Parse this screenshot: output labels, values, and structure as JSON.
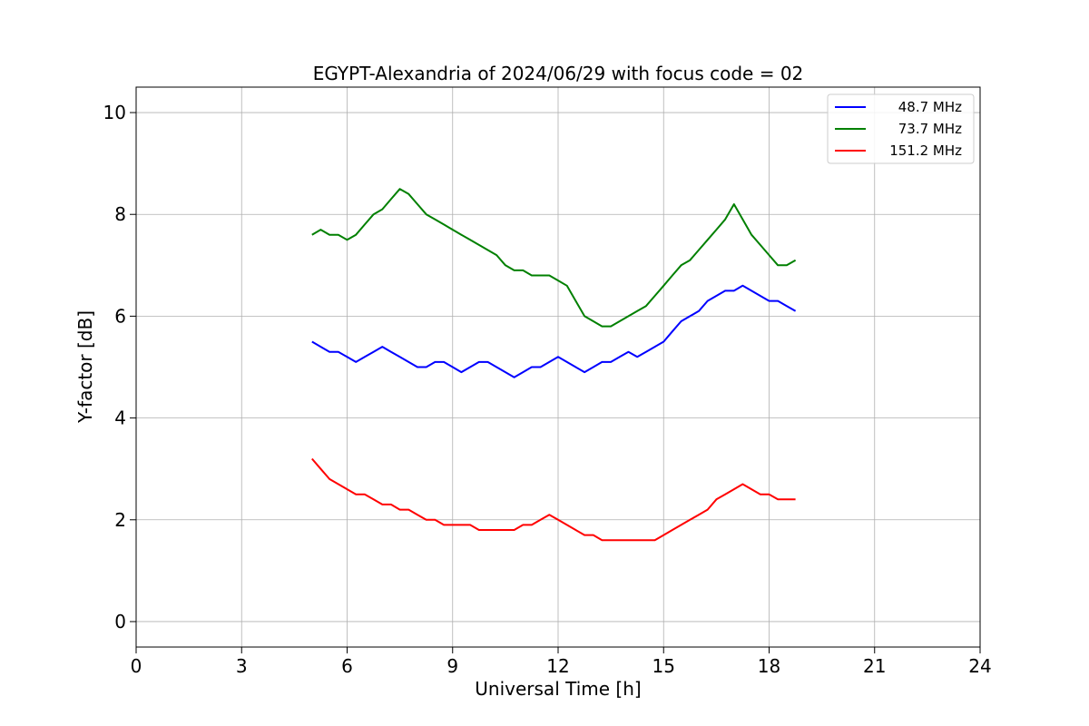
{
  "chart_data": {
    "type": "line",
    "title": "EGYPT-Alexandria of 2024/06/29 with focus code = 02",
    "xlabel": "Universal Time [h]",
    "ylabel": "Y-factor [dB]",
    "xlim": [
      0,
      24
    ],
    "ylim": [
      -0.5,
      10.5
    ],
    "xticks": [
      0,
      3,
      6,
      9,
      12,
      15,
      18,
      21,
      24
    ],
    "yticks": [
      0,
      2,
      4,
      6,
      8,
      10
    ],
    "grid": true,
    "legend_position": "top-right",
    "series": [
      {
        "name": "48.7 MHz",
        "color": "#0000ff",
        "x": [
          5.0,
          5.25,
          5.5,
          5.75,
          6.0,
          6.25,
          6.5,
          6.75,
          7.0,
          7.25,
          7.5,
          7.75,
          8.0,
          8.25,
          8.5,
          8.75,
          9.0,
          9.25,
          9.5,
          9.75,
          10.0,
          10.25,
          10.5,
          10.75,
          11.0,
          11.25,
          11.5,
          11.75,
          12.0,
          12.25,
          12.5,
          12.75,
          13.0,
          13.25,
          13.5,
          13.75,
          14.0,
          14.25,
          14.5,
          14.75,
          15.0,
          15.25,
          15.5,
          15.75,
          16.0,
          16.25,
          16.5,
          16.75,
          17.0,
          17.25,
          17.5,
          17.75,
          18.0,
          18.25,
          18.5,
          18.75
        ],
        "y": [
          5.5,
          5.4,
          5.3,
          5.3,
          5.2,
          5.1,
          5.2,
          5.3,
          5.4,
          5.3,
          5.2,
          5.1,
          5.0,
          5.0,
          5.1,
          5.1,
          5.0,
          4.9,
          5.0,
          5.1,
          5.1,
          5.0,
          4.9,
          4.8,
          4.9,
          5.0,
          5.0,
          5.1,
          5.2,
          5.1,
          5.0,
          4.9,
          5.0,
          5.1,
          5.1,
          5.2,
          5.3,
          5.2,
          5.3,
          5.4,
          5.5,
          5.7,
          5.9,
          6.0,
          6.1,
          6.3,
          6.4,
          6.5,
          6.5,
          6.6,
          6.5,
          6.4,
          6.3,
          6.3,
          6.2,
          6.1
        ]
      },
      {
        "name": "73.7 MHz",
        "color": "#008000",
        "x": [
          5.0,
          5.25,
          5.5,
          5.75,
          6.0,
          6.25,
          6.5,
          6.75,
          7.0,
          7.25,
          7.5,
          7.75,
          8.0,
          8.25,
          8.5,
          8.75,
          9.0,
          9.25,
          9.5,
          9.75,
          10.0,
          10.25,
          10.5,
          10.75,
          11.0,
          11.25,
          11.5,
          11.75,
          12.0,
          12.25,
          12.5,
          12.75,
          13.0,
          13.25,
          13.5,
          13.75,
          14.0,
          14.25,
          14.5,
          14.75,
          15.0,
          15.25,
          15.5,
          15.75,
          16.0,
          16.25,
          16.5,
          16.75,
          17.0,
          17.25,
          17.5,
          17.75,
          18.0,
          18.25,
          18.5,
          18.75
        ],
        "y": [
          7.6,
          7.7,
          7.6,
          7.6,
          7.5,
          7.6,
          7.8,
          8.0,
          8.1,
          8.3,
          8.5,
          8.4,
          8.2,
          8.0,
          7.9,
          7.8,
          7.7,
          7.6,
          7.5,
          7.4,
          7.3,
          7.2,
          7.0,
          6.9,
          6.9,
          6.8,
          6.8,
          6.8,
          6.7,
          6.6,
          6.3,
          6.0,
          5.9,
          5.8,
          5.8,
          5.9,
          6.0,
          6.1,
          6.2,
          6.4,
          6.6,
          6.8,
          7.0,
          7.1,
          7.3,
          7.5,
          7.7,
          7.9,
          8.2,
          7.9,
          7.6,
          7.4,
          7.2,
          7.0,
          7.0,
          7.1
        ]
      },
      {
        "name": "151.2 MHz",
        "color": "#ff0000",
        "x": [
          5.0,
          5.25,
          5.5,
          5.75,
          6.0,
          6.25,
          6.5,
          6.75,
          7.0,
          7.25,
          7.5,
          7.75,
          8.0,
          8.25,
          8.5,
          8.75,
          9.0,
          9.25,
          9.5,
          9.75,
          10.0,
          10.25,
          10.5,
          10.75,
          11.0,
          11.25,
          11.5,
          11.75,
          12.0,
          12.25,
          12.5,
          12.75,
          13.0,
          13.25,
          13.5,
          13.75,
          14.0,
          14.25,
          14.5,
          14.75,
          15.0,
          15.25,
          15.5,
          15.75,
          16.0,
          16.25,
          16.5,
          16.75,
          17.0,
          17.25,
          17.5,
          17.75,
          18.0,
          18.25,
          18.5,
          18.75
        ],
        "y": [
          3.2,
          3.0,
          2.8,
          2.7,
          2.6,
          2.5,
          2.5,
          2.4,
          2.3,
          2.3,
          2.2,
          2.2,
          2.1,
          2.0,
          2.0,
          1.9,
          1.9,
          1.9,
          1.9,
          1.8,
          1.8,
          1.8,
          1.8,
          1.8,
          1.9,
          1.9,
          2.0,
          2.1,
          2.0,
          1.9,
          1.8,
          1.7,
          1.7,
          1.6,
          1.6,
          1.6,
          1.6,
          1.6,
          1.6,
          1.6,
          1.7,
          1.8,
          1.9,
          2.0,
          2.1,
          2.2,
          2.4,
          2.5,
          2.6,
          2.7,
          2.6,
          2.5,
          2.5,
          2.4,
          2.4,
          2.4
        ]
      }
    ]
  }
}
